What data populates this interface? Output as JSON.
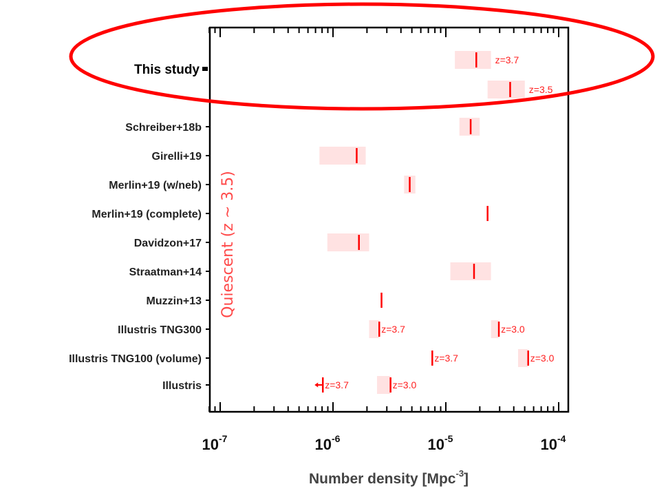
{
  "chart_data": {
    "type": "range-marker",
    "xlabel": "Number density [Mpc^-3]",
    "xlabel_base": "Number density [Mpc",
    "xlabel_exp": "-3",
    "xlabel_close": "]",
    "xscale": "log",
    "xlim_log10": [
      -7.1,
      -3.91
    ],
    "xticks": [
      {
        "base": "10",
        "exp": "-7",
        "log": -7
      },
      {
        "base": "10",
        "exp": "-6",
        "log": -6
      },
      {
        "base": "10",
        "exp": "-5",
        "log": -5
      },
      {
        "base": "10",
        "exp": "-4",
        "log": -4
      }
    ],
    "group_label": "Quiescent (z ~ 3.5)",
    "highlight_label": "This study",
    "colors": {
      "marker": "#ff0000",
      "box": "#ffe2e2",
      "highlight": "#ff0000",
      "group": "#ff4a4a"
    },
    "rows": [
      {
        "name": "This study",
        "label": "",
        "points": [
          {
            "log": -4.73,
            "range": [
              -4.92,
              -4.6
            ],
            "z": "z=3.7"
          }
        ]
      },
      {
        "name": "This study",
        "label": "",
        "points": [
          {
            "log": -4.43,
            "range": [
              -4.63,
              -4.3
            ],
            "z": "z=3.5"
          }
        ]
      },
      {
        "name": "Schreiber+18b",
        "label": "Schreiber+18b",
        "points": [
          {
            "log": -4.78,
            "range": [
              -4.88,
              -4.7
            ]
          }
        ]
      },
      {
        "name": "Girelli+19",
        "label": "Girelli+19",
        "points": [
          {
            "log": -5.79,
            "range": [
              -6.12,
              -5.71
            ]
          }
        ]
      },
      {
        "name": "Merlin+19 (w/neb)",
        "label": "Merlin+19 (w/neb)",
        "points": [
          {
            "log": -5.32,
            "range": [
              -5.37,
              -5.27
            ]
          }
        ]
      },
      {
        "name": "Merlin+19 (complete)",
        "label": "Merlin+19 (complete)",
        "points": [
          {
            "log": -4.63
          }
        ]
      },
      {
        "name": "Davidzon+17",
        "label": "Davidzon+17",
        "points": [
          {
            "log": -5.77,
            "range": [
              -6.05,
              -5.68
            ]
          }
        ]
      },
      {
        "name": "Straatman+14",
        "label": "Straatman+14",
        "points": [
          {
            "log": -4.75,
            "range": [
              -4.96,
              -4.6
            ]
          }
        ]
      },
      {
        "name": "Muzzin+13",
        "label": "Muzzin+13",
        "points": [
          {
            "log": -5.57
          }
        ]
      },
      {
        "name": "Illustris TNG300",
        "label": "Illustris TNG300",
        "points": [
          {
            "log": -5.59,
            "range": [
              -5.68,
              -5.59
            ],
            "z": "z=3.7"
          },
          {
            "log": -4.53,
            "range": [
              -4.6,
              -4.53
            ],
            "z": "z=3.0"
          }
        ]
      },
      {
        "name": "Illustris TNG100 (volume)",
        "label": "Illustris TNG100 (volume)",
        "points": [
          {
            "log": -5.12,
            "z": "z=3.7"
          },
          {
            "log": -4.27,
            "range": [
              -4.36,
              -4.27
            ],
            "z": "z=3.0"
          }
        ]
      },
      {
        "name": "Illustris",
        "label": "Illustris",
        "points": [
          {
            "log": -6.09,
            "upper_limit": true,
            "z": "z=3.7"
          },
          {
            "log": -5.49,
            "range": [
              -5.61,
              -5.49
            ],
            "z": "z=3.0"
          }
        ]
      }
    ]
  }
}
